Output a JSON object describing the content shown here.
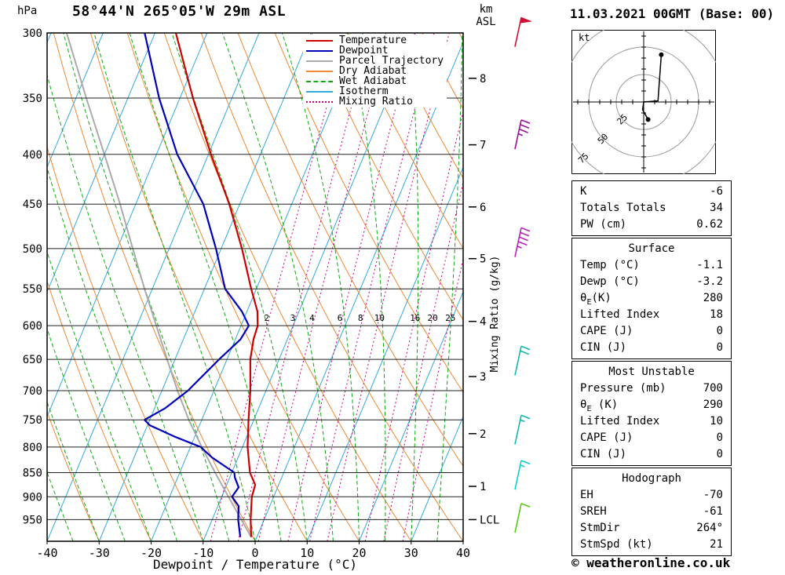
{
  "header": {
    "station": "58°44'N 265°05'W 29m ASL",
    "datetime": "11.03.2021 00GMT (Base: 00)",
    "pressure_unit": "hPa",
    "altitude_unit_line1": "km",
    "altitude_unit_line2": "ASL"
  },
  "axes": {
    "x_label": "Dewpoint / Temperature (°C)",
    "x_ticks": [
      -40,
      -30,
      -20,
      -10,
      0,
      10,
      20,
      30,
      40
    ],
    "pressure_ticks": [
      300,
      350,
      400,
      450,
      500,
      550,
      600,
      650,
      700,
      750,
      800,
      850,
      900,
      950
    ],
    "mixing_ratio_label": "Mixing Ratio (g/kg)",
    "km_levels": [
      {
        "label": "8",
        "pressure": 334
      },
      {
        "label": "7",
        "pressure": 391
      },
      {
        "label": "6",
        "pressure": 453
      },
      {
        "label": "5",
        "pressure": 512
      },
      {
        "label": "4",
        "pressure": 594
      },
      {
        "label": "3",
        "pressure": 677
      },
      {
        "label": "2",
        "pressure": 775
      },
      {
        "label": "1",
        "pressure": 878
      },
      {
        "label": "LCL",
        "pressure": 950
      }
    ]
  },
  "legend": [
    {
      "key": "temperature",
      "label": "Temperature",
      "color": "#cc0000",
      "dash": ""
    },
    {
      "key": "dewpoint",
      "label": "Dewpoint",
      "color": "#0000bb",
      "dash": ""
    },
    {
      "key": "parcel",
      "label": "Parcel Trajectory",
      "color": "#aaaaaa",
      "dash": ""
    },
    {
      "key": "dry_adiabat",
      "label": "Dry Adiabat",
      "color": "#ee8833",
      "dash": ""
    },
    {
      "key": "wet_adiabat",
      "label": "Wet Adiabat",
      "color": "#11aa11",
      "dash": "5 3"
    },
    {
      "key": "isotherm",
      "label": "Isotherm",
      "color": "#33aadd",
      "dash": ""
    },
    {
      "key": "mixing_ratio",
      "label": "Mixing Ratio",
      "color": "#cc0088",
      "dash": "2 3"
    }
  ],
  "chart_data": {
    "type": "skewt-log-p",
    "pressure_range": [
      300,
      1000
    ],
    "temperature_range_c": [
      -40,
      40
    ],
    "isotherm_step_c": 10,
    "dry_adiabat_step_c": 10,
    "wet_adiabat_step_c": 5,
    "mixing_ratio_lines_gkg": [
      2,
      3,
      4,
      6,
      8,
      10,
      16,
      20,
      25
    ],
    "temperature_profile": [
      [
        990,
        -1.1
      ],
      [
        950,
        -2.6
      ],
      [
        925,
        -3.4
      ],
      [
        900,
        -4.2
      ],
      [
        875,
        -4.5
      ],
      [
        850,
        -6.5
      ],
      [
        800,
        -9
      ],
      [
        750,
        -11
      ],
      [
        700,
        -13
      ],
      [
        650,
        -15.5
      ],
      [
        620,
        -16.5
      ],
      [
        600,
        -16.8
      ],
      [
        580,
        -18
      ],
      [
        550,
        -21
      ],
      [
        500,
        -26
      ],
      [
        450,
        -32
      ],
      [
        400,
        -39.5
      ],
      [
        350,
        -47.5
      ],
      [
        300,
        -56
      ]
    ],
    "dewpoint_profile": [
      [
        990,
        -3.2
      ],
      [
        950,
        -5
      ],
      [
        920,
        -6
      ],
      [
        900,
        -8
      ],
      [
        880,
        -7.5
      ],
      [
        860,
        -9
      ],
      [
        850,
        -9.5
      ],
      [
        820,
        -15
      ],
      [
        800,
        -18
      ],
      [
        780,
        -24
      ],
      [
        760,
        -29.5
      ],
      [
        750,
        -31
      ],
      [
        730,
        -28
      ],
      [
        700,
        -25
      ],
      [
        650,
        -21.5
      ],
      [
        620,
        -19
      ],
      [
        600,
        -18.5
      ],
      [
        580,
        -21
      ],
      [
        550,
        -26
      ],
      [
        500,
        -31
      ],
      [
        450,
        -37
      ],
      [
        400,
        -46
      ],
      [
        350,
        -54
      ],
      [
        300,
        -62
      ]
    ],
    "parcel_profile": [
      [
        990,
        -1.1
      ],
      [
        950,
        -4.4
      ],
      [
        900,
        -8.7
      ],
      [
        850,
        -13.2
      ],
      [
        800,
        -17.8
      ],
      [
        750,
        -22.5
      ],
      [
        700,
        -27
      ],
      [
        650,
        -31.5
      ],
      [
        600,
        -36.3
      ],
      [
        550,
        -41.5
      ],
      [
        500,
        -47
      ],
      [
        450,
        -53
      ],
      [
        400,
        -60
      ],
      [
        350,
        -68
      ],
      [
        300,
        -77
      ]
    ],
    "wind_barbs": [
      {
        "pressure": 310,
        "speed_kt": 50,
        "color": "#cc1133"
      },
      {
        "pressure": 395,
        "speed_kt": 35,
        "color": "#991199"
      },
      {
        "pressure": 510,
        "speed_kt": 45,
        "color": "#bb22bb"
      },
      {
        "pressure": 675,
        "speed_kt": 20,
        "color": "#11bbaa"
      },
      {
        "pressure": 795,
        "speed_kt": 15,
        "color": "#11bbaa"
      },
      {
        "pressure": 885,
        "speed_kt": 15,
        "color": "#11cccc"
      },
      {
        "pressure": 980,
        "speed_kt": 10,
        "color": "#55cc11"
      }
    ]
  },
  "hodograph": {
    "unit": "kt",
    "rings_kt": [
      25,
      50,
      75
    ],
    "ring_labels": [
      "25",
      "50",
      "75"
    ],
    "trace_kt": [
      [
        4,
        -16
      ],
      [
        -1,
        -7
      ],
      [
        0,
        0
      ],
      [
        13,
        1
      ],
      [
        16,
        43
      ]
    ],
    "dots_kt": [
      [
        4,
        -16
      ],
      [
        16,
        43
      ]
    ]
  },
  "tables": [
    {
      "title": "",
      "rows": [
        [
          "K",
          "-6"
        ],
        [
          "Totals Totals",
          "34"
        ],
        [
          "PW (cm)",
          "0.62"
        ]
      ]
    },
    {
      "title": "Surface",
      "rows": [
        [
          "Temp (°C)",
          "-1.1"
        ],
        [
          "Dewp (°C)",
          "-3.2"
        ],
        [
          "θE(K)",
          "280"
        ],
        [
          "Lifted Index",
          "18"
        ],
        [
          "CAPE (J)",
          "0"
        ],
        [
          "CIN (J)",
          "0"
        ]
      ]
    },
    {
      "title": "Most Unstable",
      "rows": [
        [
          "Pressure (mb)",
          "700"
        ],
        [
          "θE (K)",
          "290"
        ],
        [
          "Lifted Index",
          "10"
        ],
        [
          "CAPE (J)",
          "0"
        ],
        [
          "CIN (J)",
          "0"
        ]
      ]
    },
    {
      "title": "Hodograph",
      "rows": [
        [
          "EH",
          "-70"
        ],
        [
          "SREH",
          "-61"
        ],
        [
          "StmDir",
          "264°"
        ],
        [
          "StmSpd (kt)",
          "21"
        ]
      ]
    }
  ],
  "footer": {
    "copyright": "© weatheronline.co.uk"
  }
}
